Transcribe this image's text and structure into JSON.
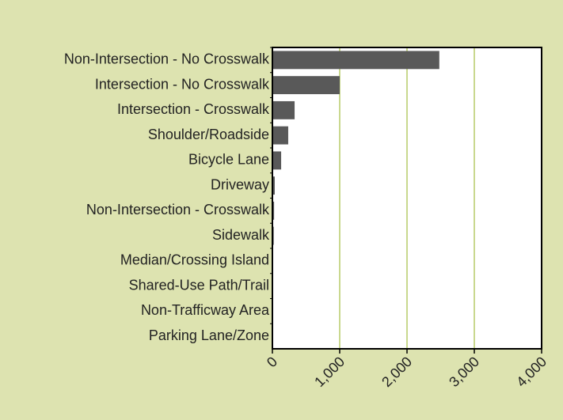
{
  "chart_data": {
    "type": "hbar",
    "categories": [
      "Non-Intersection - No Crosswalk",
      "Intersection - No Crosswalk",
      "Intersection - Crosswalk",
      "Shoulder/Roadside",
      "Bicycle Lane",
      "Driveway",
      "Non-Intersection - Crosswalk",
      "Sidewalk",
      "Median/Crossing Island",
      "Shared-Use Path/Trail",
      "Non-Trafficway Area",
      "Parking Lane/Zone"
    ],
    "values": [
      2480,
      1000,
      330,
      235,
      130,
      35,
      25,
      20,
      5,
      3,
      2,
      1
    ],
    "color": "#595959",
    "xlim": [
      0,
      4000
    ],
    "xticks": [
      0,
      {
        "value": 1000,
        "label": "1,000"
      },
      {
        "value": 2000,
        "label": "2,000"
      },
      {
        "value": 3000,
        "label": "3,000"
      },
      {
        "value": 4000,
        "label": "4,000"
      }
    ],
    "grid": true
  }
}
